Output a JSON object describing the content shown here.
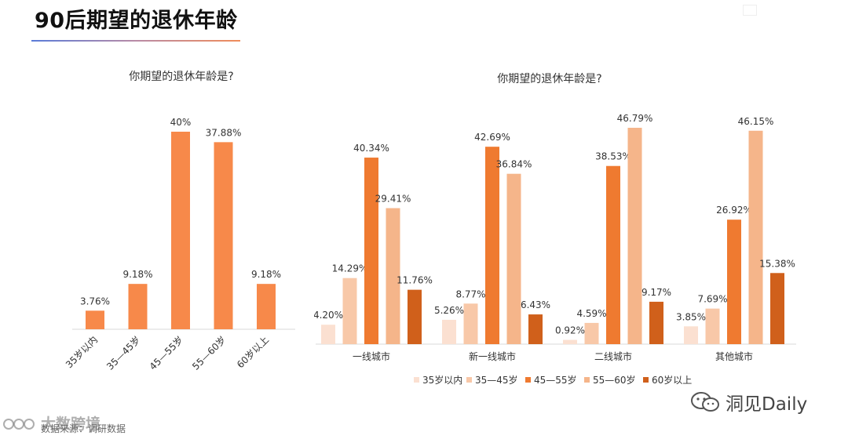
{
  "page": {
    "title": "90后期望的退休年龄",
    "source": "数据来源：调研数据",
    "watermark_left": "大数跨境",
    "watermark_right": "洞见Daily"
  },
  "colors": {
    "single": "#f7894a",
    "series": [
      "#fbe0d1",
      "#f8c8a8",
      "#ef7a30",
      "#f5b58a",
      "#d0601b"
    ]
  },
  "chart_data": [
    {
      "type": "bar",
      "title": "你期望的退休年龄是?",
      "categories": [
        "35岁以内",
        "35—45岁",
        "45—55岁",
        "55—60岁",
        "60岁以上"
      ],
      "values": [
        3.76,
        9.18,
        40,
        37.88,
        9.18
      ],
      "value_labels": [
        "3.76%",
        "9.18%",
        "40%",
        "37.88%",
        "9.18%"
      ],
      "ylim": [
        0,
        40
      ],
      "grid": false
    },
    {
      "type": "bar",
      "title": "你期望的退休年龄是?",
      "categories": [
        "一线城市",
        "新一线城市",
        "二线城市",
        "其他城市"
      ],
      "series": [
        {
          "name": "35岁以内",
          "values": [
            4.2,
            5.26,
            0.92,
            3.85
          ],
          "labels": [
            "4.20%",
            "5.26%",
            "0.92%",
            "3.85%"
          ]
        },
        {
          "name": "35—45岁",
          "values": [
            14.29,
            8.77,
            4.59,
            7.69
          ],
          "labels": [
            "14.29%",
            "8.77%",
            "4.59%",
            "7.69%"
          ]
        },
        {
          "name": "45—55岁",
          "values": [
            40.34,
            42.69,
            38.53,
            26.92
          ],
          "labels": [
            "40.34%",
            "42.69%",
            "38.53%",
            "26.92%"
          ]
        },
        {
          "name": "55—60岁",
          "values": [
            29.41,
            36.84,
            46.79,
            46.15
          ],
          "labels": [
            "29.41%",
            "36.84%",
            "46.79%",
            "46.15%"
          ]
        },
        {
          "name": "60岁以上",
          "values": [
            11.76,
            6.43,
            9.17,
            15.38
          ],
          "labels": [
            "11.76%",
            "6.43%",
            "9.17%",
            "15.38%"
          ]
        }
      ],
      "ylim": [
        0,
        46.79
      ],
      "legend": "bottom",
      "grid": false
    }
  ]
}
